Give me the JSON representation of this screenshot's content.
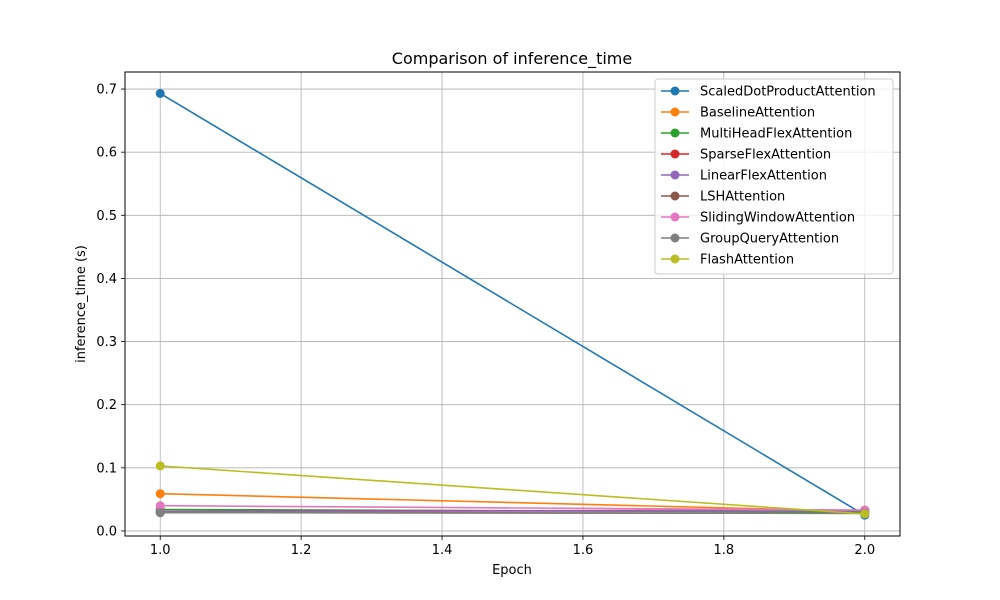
{
  "chart_data": {
    "type": "line",
    "title": "Comparison of inference_time",
    "xlabel": "Epoch",
    "ylabel": "inference_time (s)",
    "x": [
      1.0,
      2.0
    ],
    "xlim": [
      0.95,
      2.05
    ],
    "ylim": [
      -0.008,
      0.727
    ],
    "xticks": [
      1.0,
      1.2,
      1.4,
      1.6,
      1.8,
      2.0
    ],
    "xtick_labels": [
      "1.0",
      "1.2",
      "1.4",
      "1.6",
      "1.8",
      "2.0"
    ],
    "yticks": [
      0.0,
      0.1,
      0.2,
      0.3,
      0.4,
      0.5,
      0.6,
      0.7
    ],
    "ytick_labels": [
      "0.0",
      "0.1",
      "0.2",
      "0.3",
      "0.4",
      "0.5",
      "0.6",
      "0.7"
    ],
    "grid": true,
    "legend_position": "top-right",
    "series": [
      {
        "name": "ScaledDotProductAttention",
        "color": "#1f77b4",
        "values": [
          0.693,
          0.025
        ]
      },
      {
        "name": "BaselineAttention",
        "color": "#ff7f0e",
        "values": [
          0.059,
          0.031
        ]
      },
      {
        "name": "MultiHeadFlexAttention",
        "color": "#2ca02c",
        "values": [
          0.034,
          0.03
        ]
      },
      {
        "name": "SparseFlexAttention",
        "color": "#d62728",
        "values": [
          0.031,
          0.033
        ]
      },
      {
        "name": "LinearFlexAttention",
        "color": "#9467bd",
        "values": [
          0.031,
          0.032
        ]
      },
      {
        "name": "LSHAttention",
        "color": "#8c564b",
        "values": [
          0.029,
          0.028
        ]
      },
      {
        "name": "SlidingWindowAttention",
        "color": "#e377c2",
        "values": [
          0.04,
          0.033
        ]
      },
      {
        "name": "GroupQueryAttention",
        "color": "#7f7f7f",
        "values": [
          0.029,
          0.028
        ]
      },
      {
        "name": "FlashAttention",
        "color": "#bcbd22",
        "values": [
          0.103,
          0.027
        ]
      }
    ]
  }
}
